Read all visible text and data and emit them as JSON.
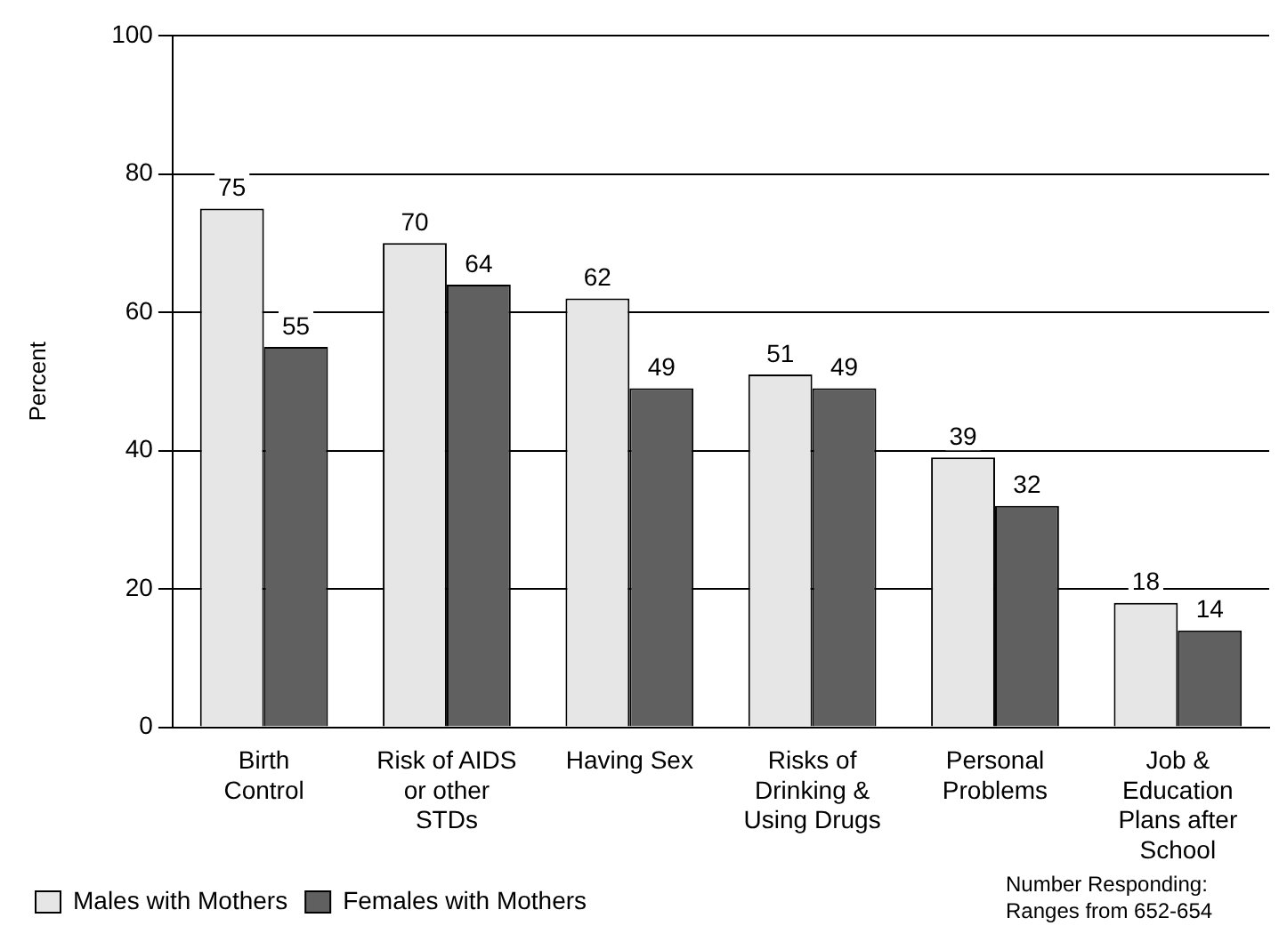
{
  "chart_data": {
    "type": "bar",
    "ylabel": "Percent",
    "categories": [
      "Birth Control",
      "Risk of AIDS or other STDs",
      "Having Sex",
      "Risks of Drinking & Using Drugs",
      "Personal Problems",
      "Job & Education Plans after School"
    ],
    "series": [
      {
        "name": "Males with Mothers",
        "color": "#e6e6e6",
        "values": [
          75,
          70,
          62,
          51,
          39,
          18
        ]
      },
      {
        "name": "Females with Mothers",
        "color": "#606060",
        "values": [
          55,
          64,
          49,
          49,
          32,
          14
        ]
      }
    ],
    "ylim": [
      0,
      100
    ],
    "yticks": [
      0,
      20,
      40,
      60,
      80,
      100
    ],
    "grid": "y",
    "legend": "bottom left",
    "data_labels": true,
    "annotations": [
      "Number Responding: Ranges from 652-654"
    ]
  }
}
